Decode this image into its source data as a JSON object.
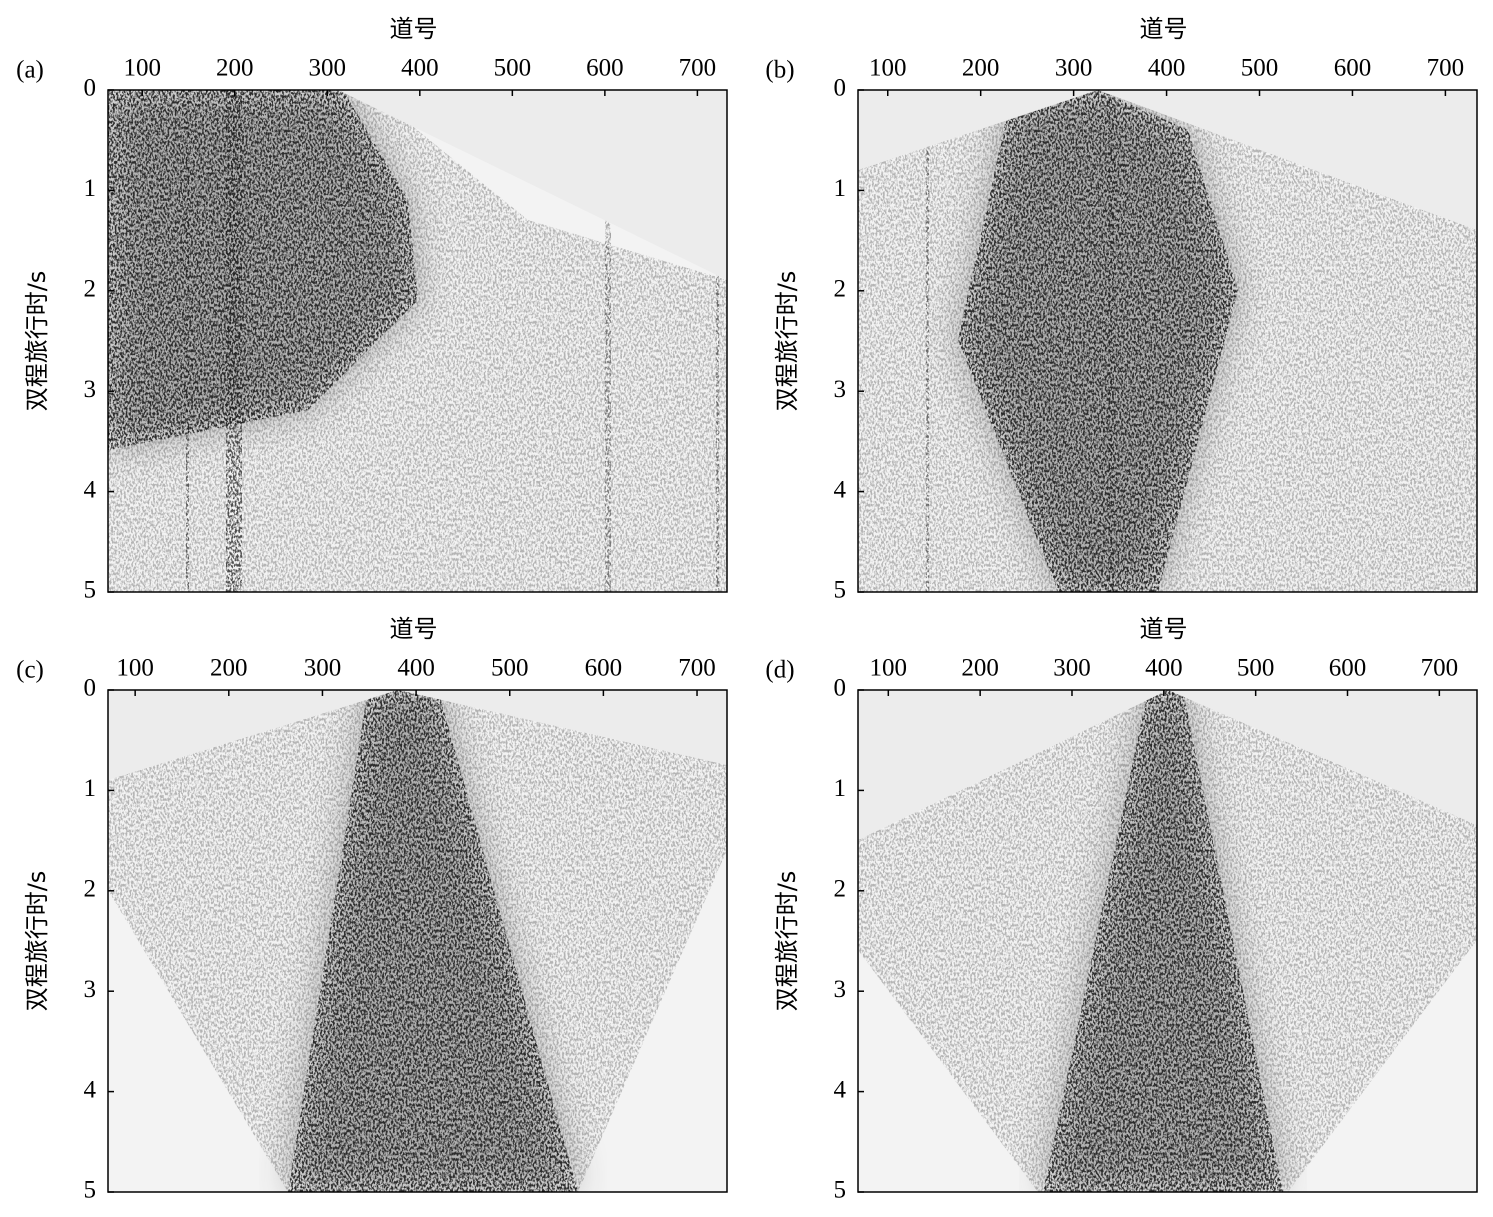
{
  "chart_data": [
    {
      "type": "seismic",
      "title": "(a)",
      "xlabel": "道号",
      "ylabel": "双程旅行时/s",
      "xaxis_position": "top",
      "yaxis_inverted": true,
      "xlim": [
        63,
        732
      ],
      "xticks": [
        100,
        200,
        300,
        400,
        500,
        600,
        700
      ],
      "ylim": [
        0,
        5
      ],
      "yticks": [
        0,
        1,
        2,
        3,
        4,
        5
      ]
    },
    {
      "type": "seismic",
      "title": "(b)",
      "xlabel": "道号",
      "ylabel": "双程旅行时/s",
      "xaxis_position": "top",
      "yaxis_inverted": true,
      "xlim": [
        68,
        734
      ],
      "xticks": [
        100,
        200,
        300,
        400,
        500,
        600,
        700
      ],
      "ylim": [
        0,
        5
      ],
      "yticks": [
        0,
        1,
        2,
        3,
        4,
        5
      ]
    },
    {
      "type": "seismic",
      "title": "(c)",
      "xlabel": "道号",
      "ylabel": "双程旅行时/s",
      "xaxis_position": "top",
      "yaxis_inverted": true,
      "xlim": [
        71,
        732
      ],
      "xticks": [
        100,
        200,
        300,
        400,
        500,
        600,
        700
      ],
      "ylim": [
        0,
        5
      ],
      "yticks": [
        0,
        1,
        2,
        3,
        4,
        5
      ]
    },
    {
      "type": "seismic",
      "title": "(d)",
      "xlabel": "道号",
      "ylabel": "双程旅行时/s",
      "xaxis_position": "top",
      "yaxis_inverted": true,
      "xlim": [
        67,
        741
      ],
      "xticks": [
        100,
        200,
        300,
        400,
        500,
        600,
        700
      ],
      "ylim": [
        0,
        5
      ],
      "yticks": [
        0,
        1,
        2,
        3,
        4,
        5
      ]
    }
  ]
}
